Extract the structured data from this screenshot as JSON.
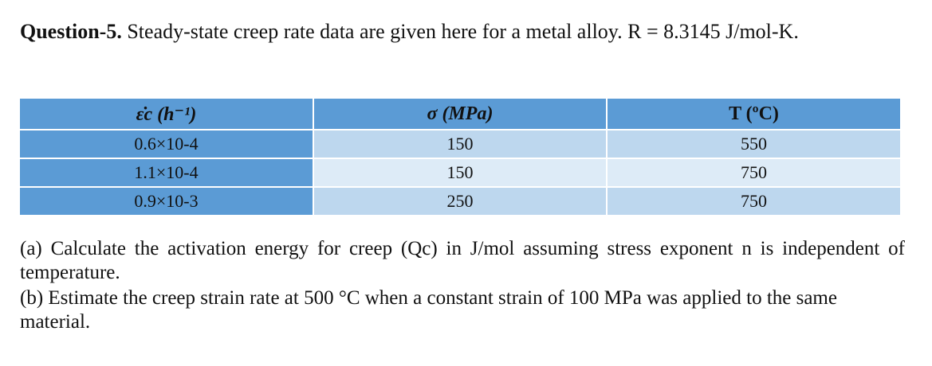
{
  "question": {
    "label": "Question-5.",
    "text": " Steady-state creep rate data are given here for a metal alloy. R = 8.3145 J/mol-K."
  },
  "table": {
    "headers": [
      "ε̇c (h⁻¹)",
      "σ (MPa)",
      "T (ºC)"
    ],
    "rows": [
      {
        "rate": "0.6×10-4",
        "stress": "150",
        "temperature": "550"
      },
      {
        "rate": "1.1×10-4",
        "stress": "150",
        "temperature": "750"
      },
      {
        "rate": "0.9×10-3",
        "stress": "250",
        "temperature": "750"
      }
    ]
  },
  "parts": {
    "a": "(a) Calculate the activation energy for creep (Qc) in J/mol assuming stress exponent n is independent of temperature.",
    "b": "(b) Estimate the creep strain rate at 500 °C when a constant strain of 100 MPa was applied to the same material."
  }
}
